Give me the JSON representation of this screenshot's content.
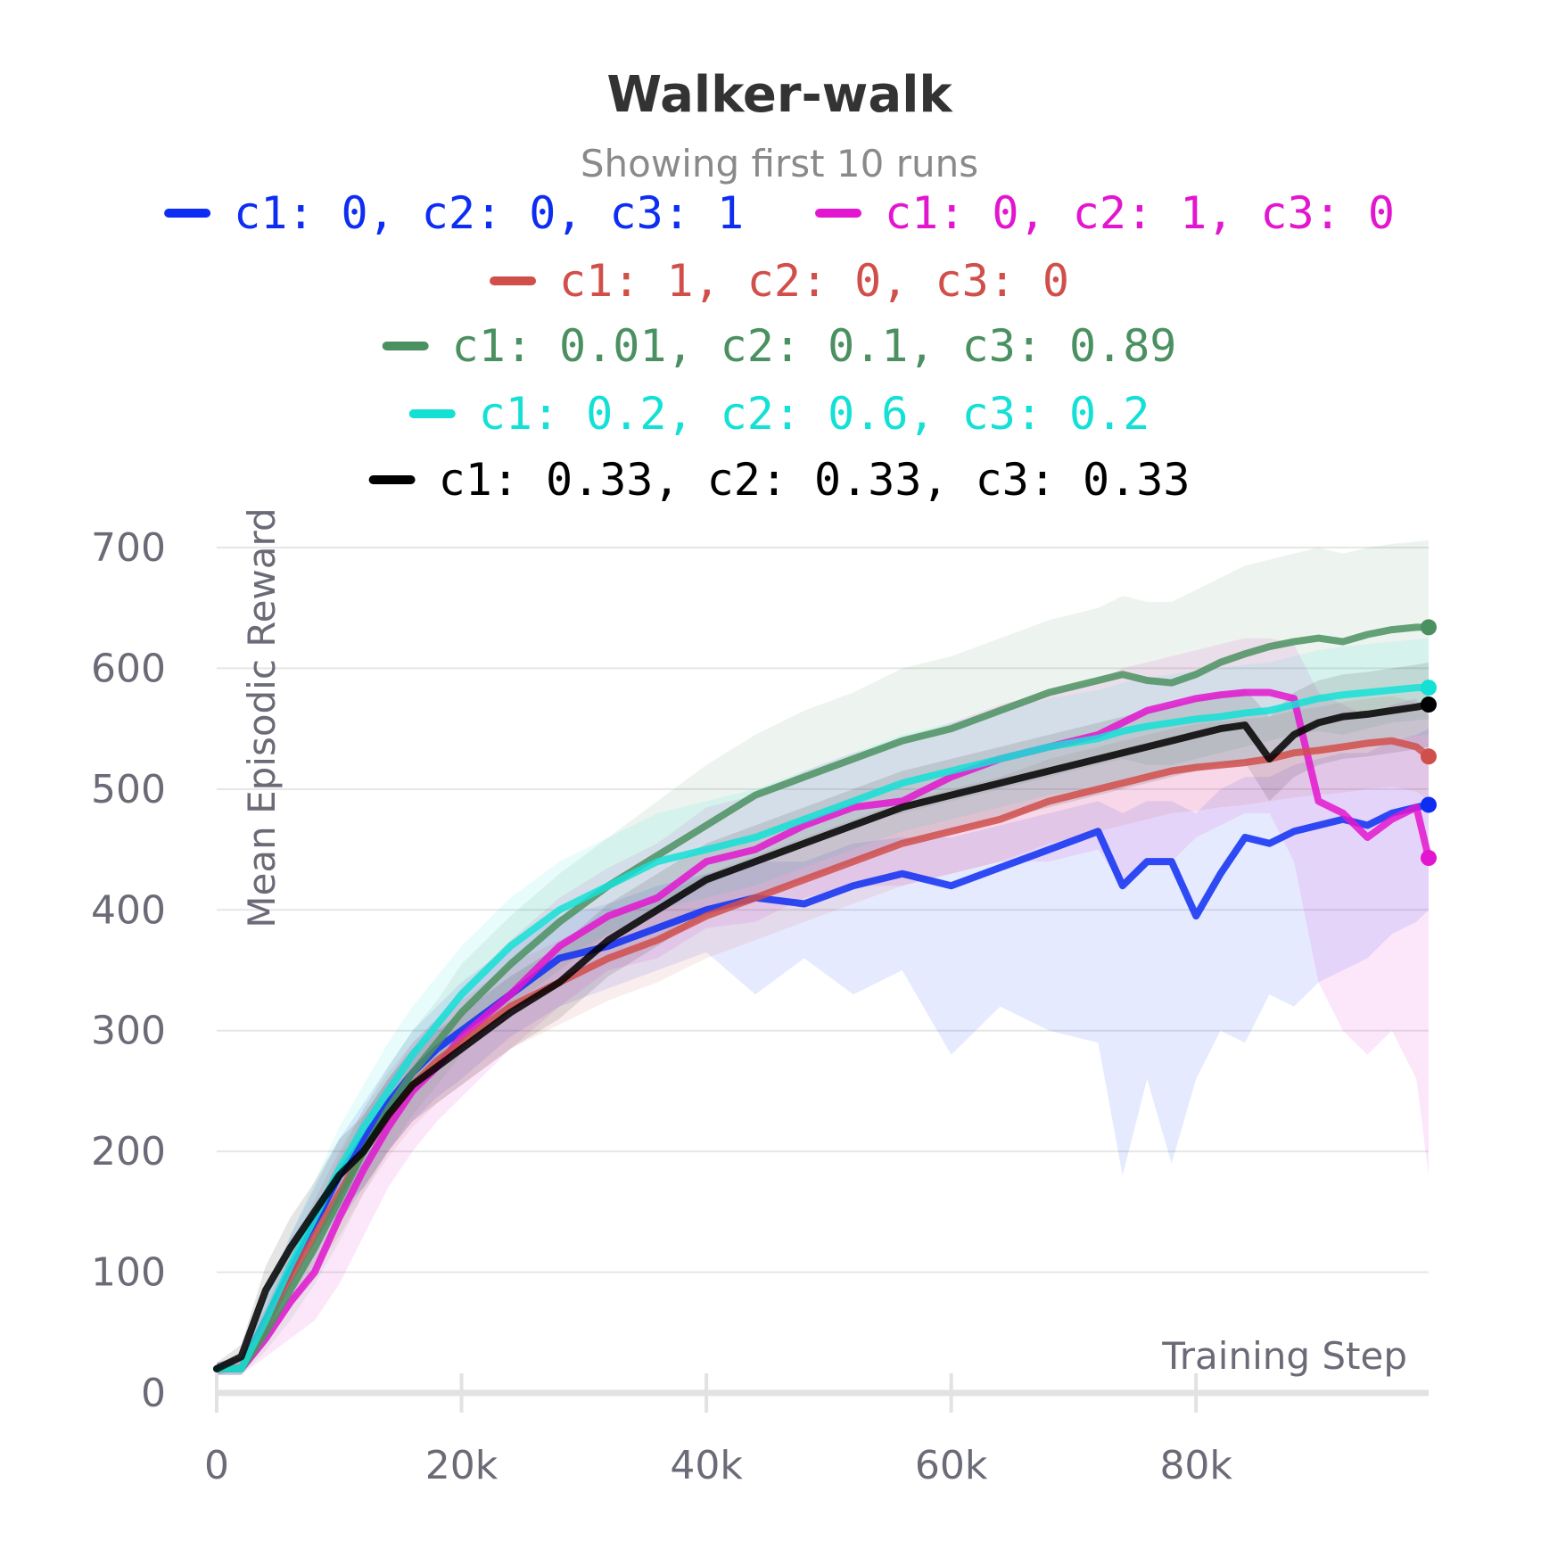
{
  "chart_data": {
    "type": "line",
    "title": "Walker-walk",
    "subtitle": "Showing first 10 runs",
    "xlabel": "Training Step",
    "ylabel": "Mean Episodic Reward",
    "xlim": [
      0,
      99000
    ],
    "ylim": [
      0,
      700
    ],
    "x_ticks": [
      0,
      20000,
      40000,
      60000,
      80000
    ],
    "x_tick_labels": [
      "0",
      "20k",
      "40k",
      "60k",
      "80k"
    ],
    "y_ticks": [
      0,
      100,
      200,
      300,
      400,
      500,
      600,
      700
    ],
    "y_tick_labels": [
      "0",
      "100",
      "200",
      "300",
      "400",
      "500",
      "600",
      "700"
    ],
    "grid": true,
    "legend_position": "top",
    "x": [
      0,
      2000,
      4000,
      6000,
      8000,
      10000,
      12000,
      14000,
      16000,
      18000,
      20000,
      24000,
      28000,
      32000,
      36000,
      40000,
      44000,
      48000,
      52000,
      56000,
      60000,
      64000,
      68000,
      72000,
      74000,
      76000,
      78000,
      80000,
      82000,
      84000,
      86000,
      88000,
      90000,
      92000,
      94000,
      96000,
      98000,
      99000
    ],
    "series": [
      {
        "name": "c1: 0, c2: 0, c3: 1",
        "color": "#0d2ef2",
        "values": [
          20,
          20,
          60,
          100,
          140,
          180,
          210,
          240,
          265,
          285,
          300,
          330,
          360,
          370,
          385,
          400,
          410,
          405,
          420,
          430,
          420,
          435,
          450,
          465,
          420,
          440,
          440,
          395,
          430,
          460,
          455,
          465,
          470,
          475,
          470,
          480,
          485,
          487
        ],
        "band_low": [
          15,
          15,
          40,
          70,
          100,
          140,
          170,
          200,
          225,
          245,
          260,
          295,
          320,
          335,
          350,
          365,
          330,
          360,
          330,
          350,
          280,
          320,
          300,
          290,
          180,
          260,
          190,
          260,
          300,
          290,
          330,
          320,
          340,
          350,
          360,
          380,
          390,
          400
        ],
        "band_high": [
          25,
          30,
          80,
          130,
          170,
          210,
          240,
          270,
          300,
          320,
          340,
          370,
          395,
          405,
          420,
          430,
          440,
          440,
          455,
          460,
          460,
          470,
          480,
          490,
          480,
          490,
          490,
          480,
          500,
          510,
          510,
          520,
          525,
          530,
          530,
          540,
          545,
          550
        ]
      },
      {
        "name": "c1: 0, c2: 1, c3: 0",
        "color": "#e316cf",
        "values": [
          20,
          20,
          45,
          75,
          100,
          145,
          185,
          220,
          250,
          270,
          295,
          330,
          370,
          395,
          410,
          440,
          450,
          470,
          485,
          490,
          510,
          525,
          535,
          545,
          555,
          565,
          570,
          575,
          578,
          580,
          580,
          575,
          490,
          480,
          460,
          475,
          485,
          443
        ],
        "band_low": [
          15,
          15,
          30,
          45,
          60,
          90,
          130,
          170,
          200,
          225,
          245,
          285,
          320,
          350,
          360,
          385,
          390,
          410,
          420,
          420,
          430,
          440,
          440,
          450,
          420,
          440,
          440,
          460,
          470,
          480,
          480,
          440,
          340,
          300,
          280,
          300,
          260,
          180
        ],
        "band_high": [
          25,
          30,
          65,
          105,
          140,
          185,
          230,
          260,
          290,
          310,
          335,
          375,
          410,
          435,
          455,
          485,
          495,
          515,
          530,
          540,
          555,
          570,
          580,
          590,
          600,
          605,
          610,
          615,
          620,
          625,
          625,
          620,
          580,
          570,
          560,
          570,
          575,
          560
        ]
      },
      {
        "name": "c1: 1, c2: 0, c3: 0",
        "color": "#d04f4b",
        "values": [
          20,
          20,
          55,
          95,
          130,
          165,
          200,
          230,
          255,
          275,
          290,
          320,
          340,
          360,
          375,
          395,
          410,
          425,
          440,
          455,
          465,
          475,
          490,
          500,
          505,
          510,
          515,
          518,
          520,
          522,
          525,
          530,
          532,
          535,
          538,
          540,
          535,
          527
        ],
        "band_low": [
          15,
          15,
          40,
          70,
          100,
          130,
          165,
          195,
          220,
          240,
          255,
          285,
          305,
          325,
          340,
          360,
          375,
          390,
          405,
          420,
          430,
          440,
          455,
          465,
          470,
          475,
          480,
          482,
          485,
          487,
          490,
          493,
          495,
          497,
          500,
          502,
          498,
          490
        ],
        "band_high": [
          25,
          30,
          70,
          120,
          160,
          200,
          235,
          265,
          290,
          310,
          325,
          355,
          375,
          395,
          410,
          430,
          445,
          460,
          475,
          490,
          500,
          510,
          525,
          535,
          540,
          545,
          550,
          554,
          556,
          558,
          560,
          565,
          568,
          572,
          575,
          577,
          572,
          565
        ]
      },
      {
        "name": "c1: 0.01, c2: 0.1, c3: 0.89",
        "color": "#4b9060",
        "values": [
          20,
          20,
          50,
          85,
          120,
          160,
          200,
          235,
          265,
          290,
          315,
          355,
          390,
          420,
          445,
          470,
          495,
          510,
          525,
          540,
          550,
          565,
          580,
          590,
          595,
          590,
          588,
          595,
          605,
          612,
          618,
          622,
          625,
          622,
          628,
          632,
          634,
          634
        ],
        "band_low": [
          15,
          15,
          35,
          60,
          90,
          125,
          165,
          200,
          230,
          255,
          280,
          320,
          350,
          380,
          400,
          420,
          440,
          455,
          470,
          480,
          490,
          500,
          510,
          520,
          525,
          520,
          520,
          525,
          530,
          535,
          540,
          545,
          548,
          545,
          550,
          555,
          557,
          558
        ],
        "band_high": [
          25,
          30,
          70,
          110,
          150,
          195,
          235,
          270,
          300,
          325,
          355,
          395,
          430,
          460,
          490,
          520,
          545,
          565,
          580,
          600,
          610,
          625,
          640,
          650,
          660,
          655,
          655,
          665,
          675,
          685,
          690,
          695,
          700,
          695,
          700,
          703,
          705,
          706
        ]
      },
      {
        "name": "c1: 0.2, c2: 0.6, c3: 0.2",
        "color": "#14e0d6",
        "values": [
          20,
          20,
          60,
          105,
          145,
          185,
          220,
          250,
          280,
          305,
          330,
          370,
          400,
          420,
          440,
          450,
          460,
          475,
          490,
          505,
          515,
          525,
          535,
          542,
          548,
          552,
          555,
          558,
          560,
          563,
          565,
          570,
          575,
          578,
          580,
          582,
          584,
          584
        ],
        "band_low": [
          15,
          15,
          45,
          80,
          115,
          150,
          185,
          215,
          245,
          270,
          295,
          330,
          360,
          380,
          400,
          410,
          420,
          435,
          450,
          465,
          475,
          485,
          495,
          502,
          508,
          512,
          515,
          518,
          520,
          523,
          525,
          530,
          535,
          538,
          540,
          542,
          544,
          545
        ],
        "band_high": [
          25,
          30,
          80,
          130,
          175,
          220,
          255,
          290,
          320,
          345,
          370,
          410,
          440,
          460,
          480,
          490,
          500,
          515,
          530,
          545,
          555,
          565,
          575,
          582,
          588,
          592,
          595,
          598,
          600,
          603,
          605,
          610,
          615,
          618,
          620,
          622,
          624,
          625
        ]
      },
      {
        "name": "c1: 0.33, c2: 0.33, c3: 0.33",
        "color": "#000000",
        "values": [
          20,
          30,
          85,
          120,
          150,
          180,
          200,
          230,
          255,
          270,
          285,
          315,
          340,
          375,
          400,
          425,
          440,
          455,
          470,
          485,
          495,
          505,
          515,
          525,
          530,
          535,
          540,
          545,
          550,
          553,
          525,
          545,
          555,
          560,
          562,
          565,
          568,
          570
        ],
        "band_low": [
          15,
          20,
          65,
          95,
          125,
          150,
          170,
          200,
          225,
          240,
          255,
          285,
          310,
          345,
          370,
          395,
          410,
          425,
          440,
          455,
          465,
          475,
          485,
          495,
          500,
          505,
          510,
          515,
          520,
          522,
          490,
          510,
          520,
          525,
          527,
          530,
          533,
          535
        ],
        "band_high": [
          25,
          40,
          105,
          145,
          175,
          210,
          230,
          260,
          285,
          300,
          315,
          345,
          370,
          405,
          430,
          455,
          470,
          485,
          500,
          515,
          525,
          535,
          545,
          555,
          560,
          565,
          570,
          575,
          580,
          583,
          560,
          580,
          590,
          595,
          597,
          600,
          603,
          605
        ]
      }
    ]
  }
}
